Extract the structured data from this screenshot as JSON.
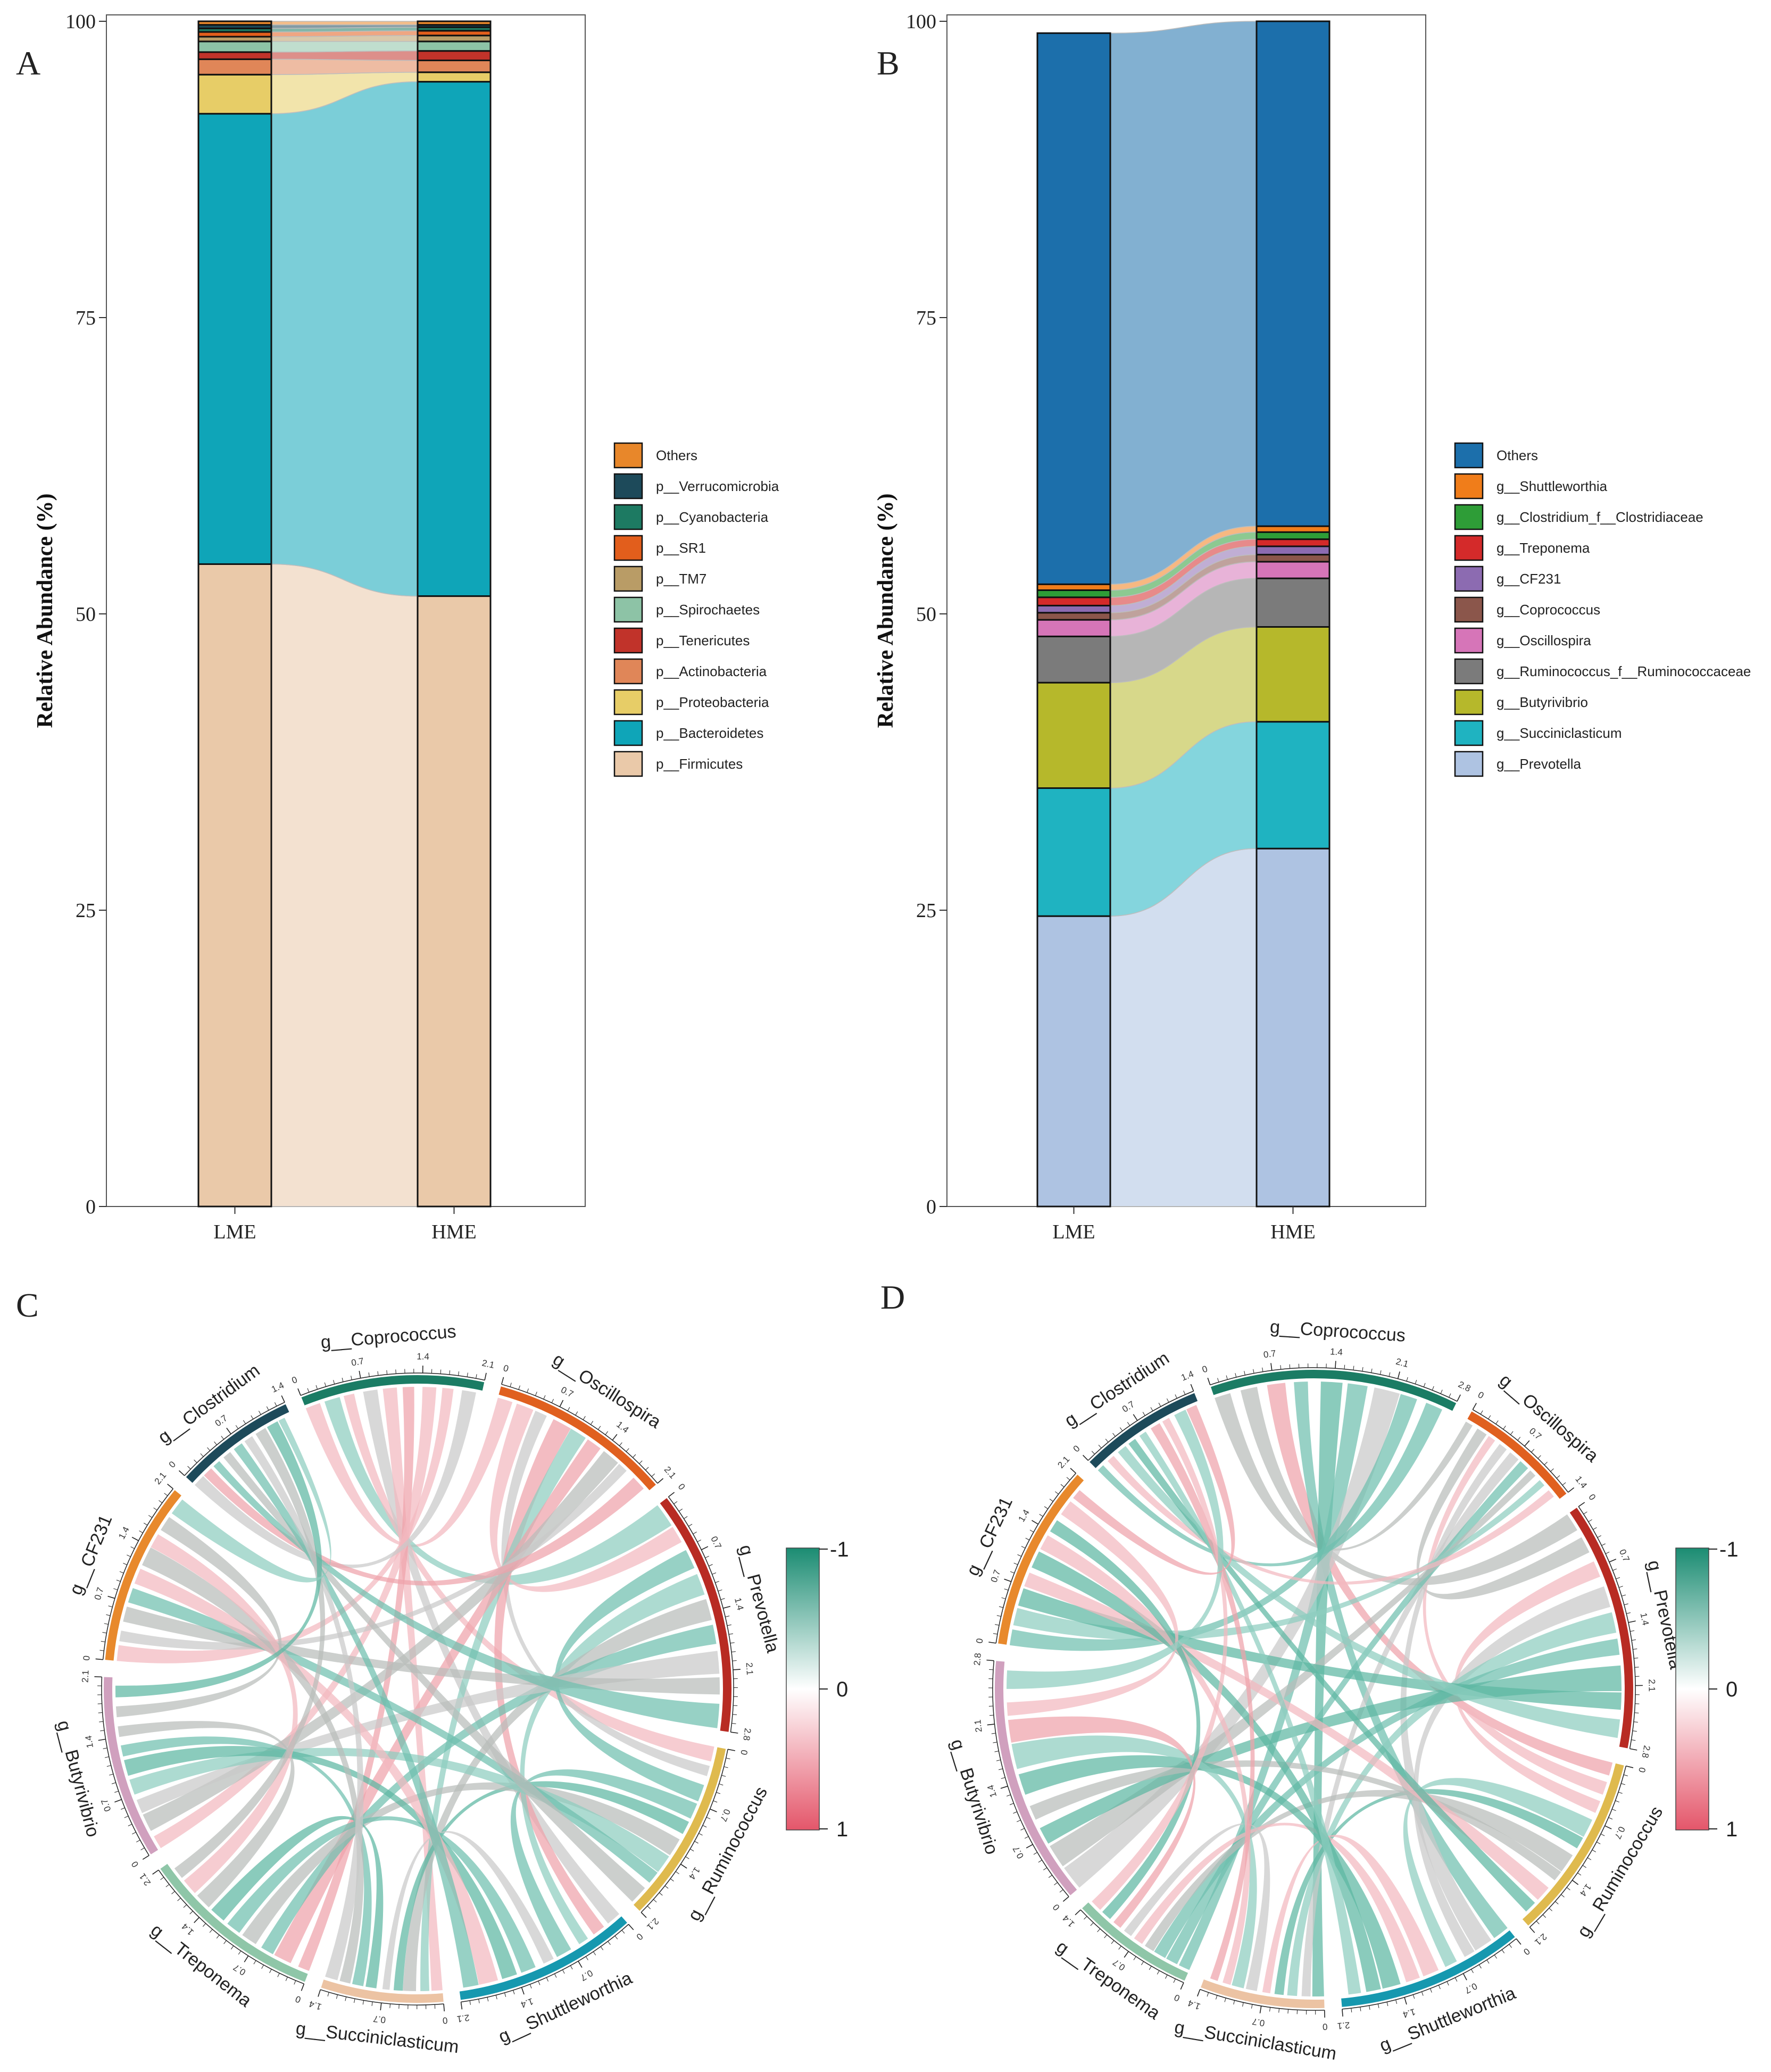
{
  "chart_data": [
    {
      "panel": "A",
      "type": "bar",
      "stacked": true,
      "alluvial": true,
      "ylabel": "Relative Abundance (%)",
      "ylim": [
        0,
        100
      ],
      "yticks": [
        0,
        25,
        50,
        75,
        100
      ],
      "categories": [
        "LME",
        "HME"
      ],
      "series": [
        {
          "name": "p__Firmicutes",
          "color": "#EAC9A9",
          "values": [
            54.2,
            51.5
          ]
        },
        {
          "name": "p__Bacteroidetes",
          "color": "#0FA5B8",
          "values": [
            38.0,
            43.4
          ]
        },
        {
          "name": "p__Proteobacteria",
          "color": "#E7CD67",
          "values": [
            3.3,
            0.8
          ]
        },
        {
          "name": "p__Actinobacteria",
          "color": "#E08658",
          "values": [
            1.3,
            1.0
          ]
        },
        {
          "name": "p__Tenericutes",
          "color": "#C1332A",
          "values": [
            0.6,
            0.8
          ]
        },
        {
          "name": "p__Spirochaetes",
          "color": "#8DC3A6",
          "values": [
            0.9,
            0.8
          ]
        },
        {
          "name": "p__TM7",
          "color": "#B99C66",
          "values": [
            0.4,
            0.5
          ]
        },
        {
          "name": "p__SR1",
          "color": "#E25E1C",
          "values": [
            0.4,
            0.4
          ]
        },
        {
          "name": "p__Cyanobacteria",
          "color": "#1D7A62",
          "values": [
            0.3,
            0.3
          ]
        },
        {
          "name": "p__Verrucomicrobia",
          "color": "#1D4A5A",
          "values": [
            0.3,
            0.2
          ]
        },
        {
          "name": "Others",
          "color": "#E8872A",
          "values": [
            0.3,
            0.3
          ]
        }
      ]
    },
    {
      "panel": "B",
      "type": "bar",
      "stacked": true,
      "alluvial": true,
      "ylabel": "Relative Abundance (%)",
      "ylim": [
        0,
        100
      ],
      "yticks": [
        0,
        25,
        50,
        75,
        100
      ],
      "categories": [
        "LME",
        "HME"
      ],
      "series": [
        {
          "name": "g__Prevotella",
          "color": "#AEC3E2",
          "values": [
            24.5,
            30.2
          ]
        },
        {
          "name": "g__Succiniclasticum",
          "color": "#1FB3C1",
          "values": [
            10.8,
            10.7
          ]
        },
        {
          "name": "g__Butyrivibrio",
          "color": "#B6B82B",
          "values": [
            8.9,
            8.0
          ]
        },
        {
          "name": "g__Ruminococcus_f__Ruminococcaceae",
          "color": "#7B7B7B",
          "values": [
            3.9,
            4.1
          ]
        },
        {
          "name": "g__Oscillospira",
          "color": "#D675B8",
          "values": [
            1.4,
            1.4
          ]
        },
        {
          "name": "g__Coprococcus",
          "color": "#8B564B",
          "values": [
            0.6,
            0.6
          ]
        },
        {
          "name": "g__CF231",
          "color": "#8C6BB1",
          "values": [
            0.6,
            0.7
          ]
        },
        {
          "name": "g__Treponema",
          "color": "#D42A2A",
          "values": [
            0.7,
            0.6
          ]
        },
        {
          "name": "g__Clostridium_f__Clostridiaceae",
          "color": "#2E9D37",
          "values": [
            0.6,
            0.6
          ]
        },
        {
          "name": "g__Shuttleworthia",
          "color": "#F07D1A",
          "values": [
            0.5,
            0.5
          ]
        },
        {
          "name": "Others",
          "color": "#1C6FAB",
          "values": [
            46.5,
            42.6
          ]
        }
      ],
      "legend_order": [
        "Others",
        "g__Shuttleworthia",
        "g__Clostridium_f__Clostridiaceae",
        "g__Treponema",
        "g__CF231",
        "g__Coprococcus",
        "g__Oscillospira",
        "g__Ruminococcus_f__Ruminococcaceae",
        "g__Butyrivibrio",
        "g__Succiniclasticum",
        "g__Prevotella"
      ]
    },
    {
      "panel": "C",
      "type": "chord",
      "sectors": [
        {
          "name": "g__Coprococcus",
          "label": "g__Coprococcus",
          "color": "#1B7C64",
          "max": 2.1,
          "ticks": [
            "0",
            "0.7",
            "1.4",
            "2.1"
          ]
        },
        {
          "name": "g__Oscillospira",
          "label": "g__Oscillospira",
          "color": "#E0601F",
          "max": 2.1,
          "ticks": [
            "0",
            "0.7",
            "1.4",
            "2.1"
          ]
        },
        {
          "name": "g__Prevotella",
          "label": "g__Prevotella",
          "color": "#B82B23",
          "max": 2.8,
          "ticks": [
            "0",
            "0.7",
            "1.4",
            "2.1",
            "2.8"
          ]
        },
        {
          "name": "g__Ruminococcus",
          "label": "g__Ruminococcus",
          "color": "#DFBA4E",
          "max": 2.1,
          "ticks": [
            "0",
            "0.7",
            "1.4",
            "2.1"
          ]
        },
        {
          "name": "g__Shuttleworthia",
          "label": "g__Shuttleworthia",
          "color": "#1698AF",
          "max": 2.1,
          "ticks": [
            "0",
            "0.7",
            "1.4",
            "2.1"
          ]
        },
        {
          "name": "g__Succiniclasticum",
          "label": "g__Succiniclasticum",
          "color": "#ECC3A3",
          "max": 1.4,
          "ticks": [
            "0",
            "0.7",
            "1.4"
          ]
        },
        {
          "name": "g__Treponema",
          "label": "g__Treponema",
          "color": "#8FC6A8",
          "max": 2.1,
          "ticks": [
            "0",
            "0.7",
            "1.4",
            "2.1"
          ]
        },
        {
          "name": "g__Butyrivibrio",
          "label": "g__Butyrivibrio",
          "color": "#D0A0BE",
          "max": 2.1,
          "ticks": [
            "0",
            "0.7",
            "1.4",
            "2.1"
          ]
        },
        {
          "name": "g__CF231",
          "label": "g__CF231",
          "color": "#E8892C",
          "max": 2.1,
          "ticks": [
            "0",
            "0.7",
            "1.4",
            "2.1"
          ]
        },
        {
          "name": "g__Clostridium",
          "label": "g__Clostridium",
          "color": "#1D4A5A",
          "max": 1.4,
          "ticks": [
            "0",
            "0.7",
            "1.4"
          ]
        }
      ],
      "colorbar": {
        "labels": [
          "-1",
          "0",
          "1"
        ],
        "low_color": "#1B8C72",
        "mid_color": "#FFFFFF",
        "high_color": "#E4566A"
      }
    },
    {
      "panel": "D",
      "type": "chord",
      "sectors": [
        {
          "name": "g__Coprococcus",
          "label": "g__Coprococcus",
          "color": "#1B7C64",
          "max": 2.8,
          "ticks": [
            "0",
            "0.7",
            "1.4",
            "2.1",
            "2.8"
          ]
        },
        {
          "name": "g__Oscillospira",
          "label": "g__Oscillospira",
          "color": "#E0601F",
          "max": 1.4,
          "ticks": [
            "0",
            "0.7",
            "1.4"
          ]
        },
        {
          "name": "g__Prevotella",
          "label": "g__Prevotella",
          "color": "#B82B23",
          "max": 2.8,
          "ticks": [
            "0",
            "0.7",
            "1.4",
            "2.1",
            "2.8"
          ]
        },
        {
          "name": "g__Ruminococcus",
          "label": "g__Ruminococcus",
          "color": "#DFBA4E",
          "max": 2.1,
          "ticks": [
            "0",
            "0.7",
            "1.4",
            "2.1"
          ]
        },
        {
          "name": "g__Shuttleworthia",
          "label": "g__Shuttleworthia",
          "color": "#1698AF",
          "max": 2.1,
          "ticks": [
            "0",
            "0.7",
            "1.4",
            "2.1"
          ]
        },
        {
          "name": "g__Succiniclasticum",
          "label": "g__Succiniclasticum",
          "color": "#ECC3A3",
          "max": 1.4,
          "ticks": [
            "0",
            "0.7",
            "1.4"
          ]
        },
        {
          "name": "g__Treponema",
          "label": "g__Treponema",
          "color": "#8FC6A8",
          "max": 1.4,
          "ticks": [
            "0",
            "0.7",
            "1.4"
          ]
        },
        {
          "name": "g__Butyrivibrio",
          "label": "g__Butyrivibrio",
          "color": "#D0A0BE",
          "max": 2.8,
          "ticks": [
            "0",
            "0.7",
            "1.4",
            "2.1",
            "2.8"
          ]
        },
        {
          "name": "g__CF231",
          "label": "g__CF231",
          "color": "#E8892C",
          "max": 2.1,
          "ticks": [
            "0",
            "0.7",
            "1.4",
            "2.1"
          ]
        },
        {
          "name": "g__Clostridium",
          "label": "g__Clostridium",
          "color": "#1D4A5A",
          "max": 1.4,
          "ticks": [
            "0",
            "0.7",
            "1.4"
          ]
        }
      ],
      "colorbar": {
        "labels": [
          "-1",
          "0",
          "1"
        ],
        "low_color": "#1B8C72",
        "mid_color": "#FFFFFF",
        "high_color": "#E4566A"
      }
    }
  ],
  "panel_letters": [
    "A",
    "B",
    "C",
    "D"
  ]
}
